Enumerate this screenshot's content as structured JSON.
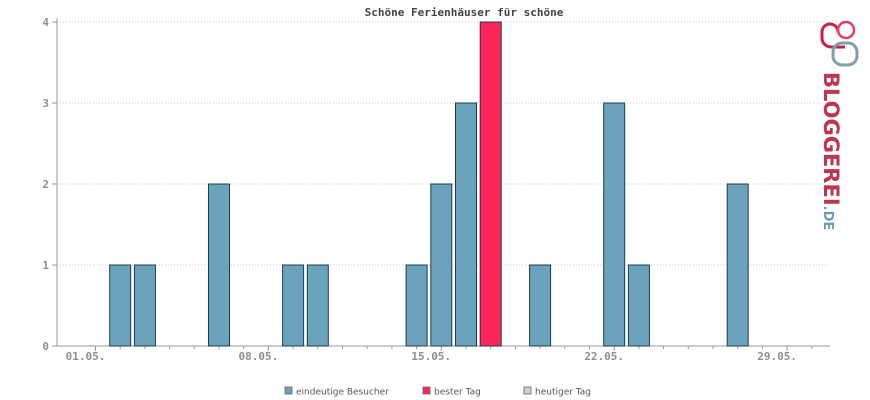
{
  "chart_data": {
    "type": "bar",
    "title": "Schöne Ferienhäuser für schöne",
    "x": [
      "01.05.",
      "02.05.",
      "03.05.",
      "04.05.",
      "05.05.",
      "06.05.",
      "07.05.",
      "08.05.",
      "09.05.",
      "10.05.",
      "11.05.",
      "12.05.",
      "13.05.",
      "14.05.",
      "15.05.",
      "16.05.",
      "17.05.",
      "18.05.",
      "19.05.",
      "20.05.",
      "21.05.",
      "22.05.",
      "23.05.",
      "24.05.",
      "25.05.",
      "26.05.",
      "27.05.",
      "28.05.",
      "29.05.",
      "30.05."
    ],
    "x_tick_labels": [
      "01.05.",
      "08.05.",
      "15.05.",
      "22.05.",
      "29.05."
    ],
    "ylim": [
      0,
      4
    ],
    "y_ticks": [
      "0",
      "1",
      "2",
      "3",
      "4"
    ],
    "series": [
      {
        "name": "eindeutige Besucher",
        "color": "#6aa3bb",
        "values": [
          0,
          1,
          1,
          0,
          0,
          2,
          0,
          0,
          1,
          1,
          0,
          0,
          0,
          1,
          2,
          3,
          0,
          0,
          1,
          0,
          0,
          3,
          1,
          0,
          0,
          0,
          2,
          0,
          0,
          0
        ]
      },
      {
        "name": "bester Tag",
        "color": "#ff2457",
        "values": [
          0,
          0,
          0,
          0,
          0,
          0,
          0,
          0,
          0,
          0,
          0,
          0,
          0,
          0,
          0,
          0,
          4,
          0,
          0,
          0,
          0,
          0,
          0,
          0,
          0,
          0,
          0,
          0,
          0,
          0
        ]
      },
      {
        "name": "heutiger Tag",
        "color": "#d0d0d0",
        "values": [
          0,
          0,
          0,
          0,
          0,
          0,
          0,
          0,
          0,
          0,
          0,
          0,
          0,
          0,
          0,
          0,
          0,
          0,
          0,
          0,
          0,
          0,
          0,
          0,
          0,
          0,
          0,
          0,
          0,
          0
        ]
      }
    ],
    "grid": true,
    "legend_position": "bottom-center"
  },
  "logo": {
    "main": "BLOGGEREI",
    "suffix": ".DE"
  }
}
